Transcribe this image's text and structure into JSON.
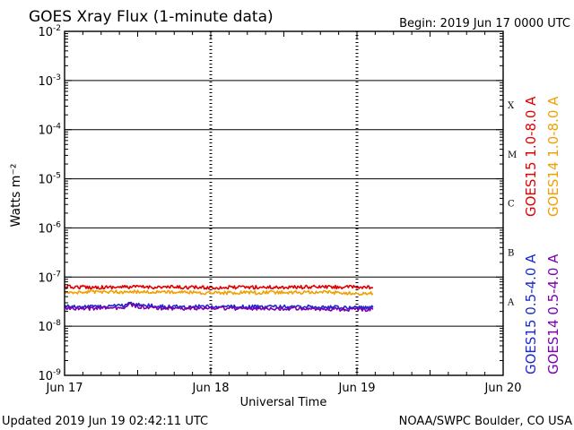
{
  "title": "GOES Xray Flux (1-minute data)",
  "begin_label": "Begin:  2019 Jun 17 0000 UTC",
  "footer_left": "Updated 2019 Jun 19 02:42:11 UTC",
  "footer_right": "NOAA/SWPC Boulder, CO USA",
  "colors": {
    "goes15_long": "#e00000",
    "goes14_long": "#f0a000",
    "goes15_short": "#1a2ad0",
    "goes14_short": "#7a00b0",
    "axis": "#000000"
  },
  "chart_data": {
    "type": "line",
    "title": "GOES Xray Flux (1-minute data)",
    "xlabel": "Universal Time",
    "ylabel": "Watts m⁻²",
    "x_unit": "days since 2019 Jun 17 0000 UTC",
    "xlim": [
      0,
      3
    ],
    "x_ticks": [
      {
        "value": 0,
        "label": "Jun 17"
      },
      {
        "value": 1,
        "label": "Jun 18"
      },
      {
        "value": 2,
        "label": "Jun 19"
      },
      {
        "value": 3,
        "label": "Jun 20"
      }
    ],
    "y_scale": "log",
    "ylim": [
      1e-09,
      0.01
    ],
    "y_ticks": [
      {
        "value": 0.01,
        "base": "10",
        "exp": "-2"
      },
      {
        "value": 0.001,
        "base": "10",
        "exp": "-3"
      },
      {
        "value": 0.0001,
        "base": "10",
        "exp": "-4"
      },
      {
        "value": 1e-05,
        "base": "10",
        "exp": "-5"
      },
      {
        "value": 1e-06,
        "base": "10",
        "exp": "-6"
      },
      {
        "value": 1e-07,
        "base": "10",
        "exp": "-7"
      },
      {
        "value": 1e-08,
        "base": "10",
        "exp": "-8"
      },
      {
        "value": 1e-09,
        "base": "10",
        "exp": "-9"
      }
    ],
    "grid_lines_y": [
      0.001,
      0.0001,
      1e-05,
      1e-06,
      1e-07,
      1e-08
    ],
    "flare_classes": [
      {
        "label": "X",
        "value": 0.00032
      },
      {
        "label": "M",
        "value": 3.2e-05
      },
      {
        "label": "C",
        "value": 3.2e-06
      },
      {
        "label": "B",
        "value": 3.2e-07
      },
      {
        "label": "A",
        "value": 3.2e-08
      }
    ],
    "series": [
      {
        "name": "GOES15 1.0-8.0 A",
        "color_key": "goes15_long",
        "x": [
          0,
          0.25,
          0.5,
          0.75,
          1.0,
          1.25,
          1.5,
          1.75,
          2.0,
          2.11
        ],
        "y": [
          6.3e-08,
          6.2e-08,
          6.3e-08,
          6.2e-08,
          6.1e-08,
          6.2e-08,
          6.2e-08,
          6.3e-08,
          6.2e-08,
          6.1e-08
        ]
      },
      {
        "name": "GOES14 1.0-8.0 A",
        "color_key": "goes14_long",
        "x": [
          0,
          0.25,
          0.5,
          0.75,
          1.0,
          1.25,
          1.5,
          1.75,
          2.0,
          2.11
        ],
        "y": [
          4.8e-08,
          5e-08,
          5e-08,
          4.9e-08,
          4.8e-08,
          4.8e-08,
          4.9e-08,
          4.9e-08,
          4.7e-08,
          4.6e-08
        ]
      },
      {
        "name": "GOES15 0.5-4.0 A",
        "color_key": "goes15_short",
        "x": [
          0,
          0.2,
          0.4,
          0.44,
          0.5,
          0.7,
          1.0,
          1.3,
          1.6,
          1.9,
          2.11
        ],
        "y": [
          2.5e-08,
          2.5e-08,
          2.6e-08,
          3e-08,
          2.7e-08,
          2.5e-08,
          2.5e-08,
          2.5e-08,
          2.5e-08,
          2.4e-08,
          2.4e-08
        ]
      },
      {
        "name": "GOES14 0.5-4.0 A",
        "color_key": "goes14_short",
        "x": [
          0,
          0.2,
          0.4,
          0.44,
          0.5,
          0.7,
          1.0,
          1.3,
          1.6,
          1.9,
          2.11
        ],
        "y": [
          2.3e-08,
          2.3e-08,
          2.4e-08,
          2.8e-08,
          2.5e-08,
          2.3e-08,
          2.3e-08,
          2.3e-08,
          2.3e-08,
          2.2e-08,
          2.2e-08
        ]
      }
    ]
  }
}
